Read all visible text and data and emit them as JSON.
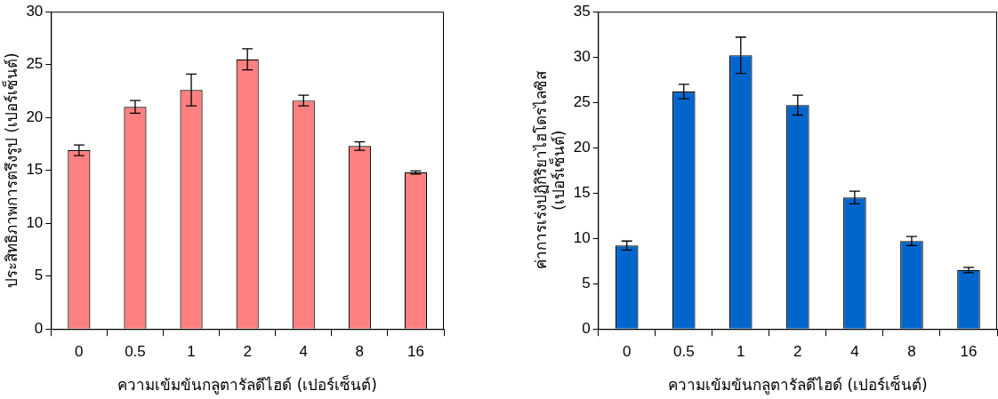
{
  "chart_data": [
    {
      "type": "bar",
      "categories": [
        "0",
        "0.5",
        "1",
        "2",
        "4",
        "8",
        "16"
      ],
      "values": [
        16.9,
        21.0,
        22.6,
        25.5,
        21.6,
        17.3,
        14.8
      ],
      "errors": [
        0.5,
        0.6,
        1.5,
        1.0,
        0.5,
        0.4,
        0.15
      ],
      "color": "#ff8080",
      "ylim": [
        0,
        30
      ],
      "yticks": [
        0,
        5,
        10,
        15,
        20,
        25,
        30
      ],
      "xlabel": "ความเข้มข้นกลูตารัลดีไฮด์ (เปอร์เซ็นต์)",
      "ylabel": "ประสิทธิภาพการตรึงรูป (เปอร์เซ็นต์)",
      "grid": false,
      "legend": false
    },
    {
      "type": "bar",
      "categories": [
        "0",
        "0.5",
        "1",
        "2",
        "4",
        "8",
        "16"
      ],
      "values": [
        9.2,
        26.2,
        30.2,
        24.7,
        14.5,
        9.7,
        6.5
      ],
      "errors": [
        0.5,
        0.8,
        2.0,
        1.1,
        0.7,
        0.5,
        0.3
      ],
      "color": "#0066cc",
      "ylim": [
        0,
        35
      ],
      "yticks": [
        0,
        5,
        10,
        15,
        20,
        25,
        30,
        35
      ],
      "xlabel": "ความเข้มข้นกลูตารัลดีไฮด์ (เปอร์เซ็นต์)",
      "ylabel": "ค่าการเร่งปฏิกิริยาไฮโดรไลซิส\n(เปอร์เซ็นต์)",
      "grid": false,
      "legend": false
    }
  ]
}
